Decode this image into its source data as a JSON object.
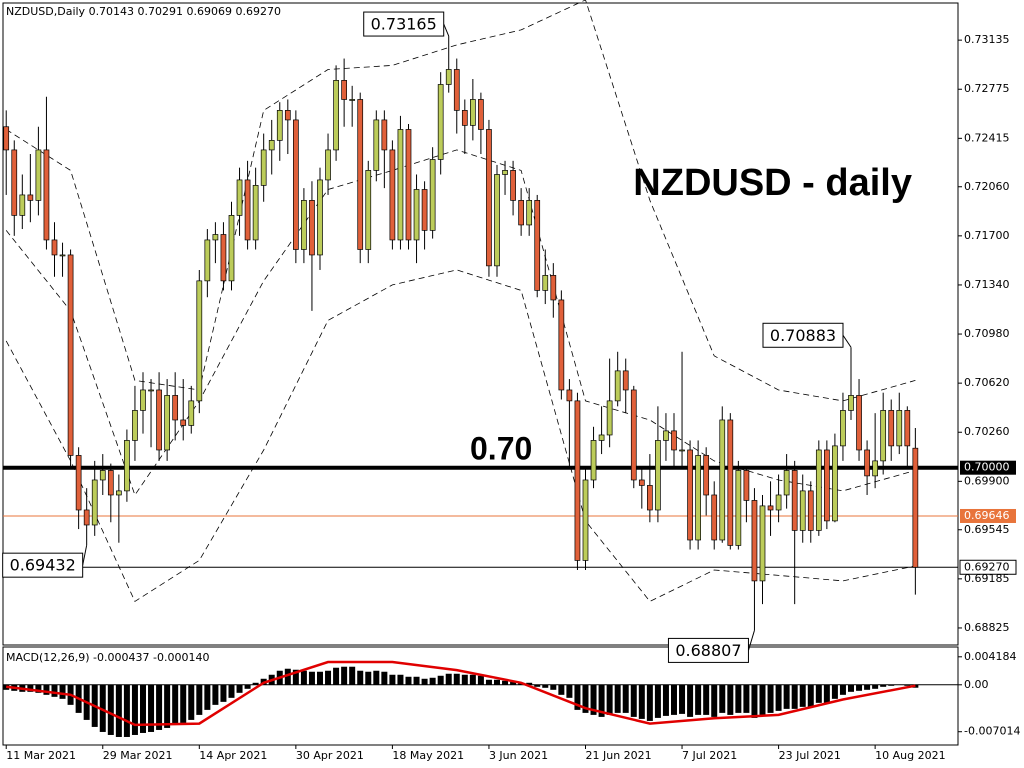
{
  "chart_data": {
    "type": "candlestick",
    "header": "NZDUSD,Daily  0.70143 0.70291 0.69069 0.69270",
    "title": "NZDUSD - daily",
    "level_label": "0.70",
    "bull_color": "#bccc5a",
    "bear_color": "#e0603a",
    "open": [
      0.725,
      0.7233,
      0.7185,
      0.72,
      0.7196,
      0.7233,
      0.7167,
      0.7156,
      0.7156,
      0.7009,
      0.6969,
      0.6958,
      0.6991,
      0.6998,
      0.698,
      0.6983,
      0.702,
      0.7042,
      0.7057,
      0.7057,
      0.7013,
      0.7053,
      0.7035,
      0.7031,
      0.7049,
      0.7137,
      0.7167,
      0.7171,
      0.7137,
      0.7185,
      0.7211,
      0.7167,
      0.7207,
      0.7233,
      0.724,
      0.7262,
      0.7255,
      0.716,
      0.7196,
      0.7156,
      0.7211,
      0.7233,
      0.7284,
      0.727,
      0.727,
      0.716,
      0.7218,
      0.7255,
      0.7233,
      0.7167,
      0.7248,
      0.7167,
      0.7204,
      0.7174,
      0.7226,
      0.7281,
      0.7292,
      0.7262,
      0.7251,
      0.727,
      0.7248,
      0.7148,
      0.7215,
      0.7218,
      0.7196,
      0.7178,
      0.7196,
      0.713,
      0.7141,
      0.7123,
      0.7057,
      0.7049,
      0.6932,
      0.6991,
      0.702,
      0.7024,
      0.7049,
      0.7071,
      0.7057,
      0.6991,
      0.6987,
      0.6969,
      0.702,
      0.7027,
      0.7013,
      0.7013,
      0.6947,
      0.7009,
      0.698,
      0.6947,
      0.7035,
      0.6943,
      0.6998,
      0.6976,
      0.6917,
      0.6972,
      0.6969,
      0.698,
      0.6998,
      0.6954,
      0.6983,
      0.6954,
      0.7013,
      0.6961,
      0.7016,
      0.7042,
      0.7053,
      0.7013,
      0.6994,
      0.7005,
      0.7042,
      0.7016,
      0.7042,
      0.70143
    ],
    "high": [
      0.7262,
      0.724,
      0.7215,
      0.723,
      0.725,
      0.7272,
      0.718,
      0.7165,
      0.716,
      0.7015,
      0.6985,
      0.7005,
      0.701,
      0.7003,
      0.6995,
      0.7028,
      0.706,
      0.707,
      0.7065,
      0.707,
      0.7065,
      0.707,
      0.7065,
      0.706,
      0.7145,
      0.7175,
      0.718,
      0.718,
      0.7195,
      0.722,
      0.7225,
      0.722,
      0.7245,
      0.7255,
      0.7268,
      0.727,
      0.7262,
      0.7205,
      0.721,
      0.722,
      0.7245,
      0.7295,
      0.73,
      0.728,
      0.7275,
      0.7225,
      0.7262,
      0.7262,
      0.724,
      0.7258,
      0.7252,
      0.7215,
      0.721,
      0.7235,
      0.729,
      0.73165,
      0.73,
      0.727,
      0.7285,
      0.7275,
      0.7255,
      0.7222,
      0.7225,
      0.7225,
      0.7205,
      0.7205,
      0.72,
      0.716,
      0.715,
      0.713,
      0.7065,
      0.7055,
      0.7,
      0.703,
      0.7045,
      0.708,
      0.7085,
      0.708,
      0.706,
      0.7,
      0.701,
      0.7045,
      0.704,
      0.704,
      0.7085,
      0.702,
      0.702,
      0.7015,
      0.699,
      0.7045,
      0.704,
      0.7005,
      0.7,
      0.6985,
      0.698,
      0.699,
      0.6995,
      0.701,
      0.7005,
      0.6995,
      0.699,
      0.702,
      0.702,
      0.7025,
      0.7055,
      0.70883,
      0.7065,
      0.702,
      0.704,
      0.7055,
      0.705,
      0.7055,
      0.7045,
      0.70291
    ],
    "low": [
      0.72,
      0.717,
      0.7175,
      0.718,
      0.7185,
      0.716,
      0.714,
      0.714,
      0.7,
      0.6955,
      0.69432,
      0.695,
      0.698,
      0.696,
      0.6945,
      0.6975,
      0.7005,
      0.7025,
      0.7015,
      0.7005,
      0.7005,
      0.702,
      0.702,
      0.7025,
      0.704,
      0.7125,
      0.715,
      0.713,
      0.713,
      0.717,
      0.716,
      0.716,
      0.7195,
      0.7215,
      0.7225,
      0.723,
      0.715,
      0.715,
      0.7115,
      0.7145,
      0.72,
      0.7225,
      0.725,
      0.725,
      0.715,
      0.715,
      0.721,
      0.7205,
      0.716,
      0.716,
      0.716,
      0.715,
      0.716,
      0.7168,
      0.7215,
      0.7275,
      0.7245,
      0.723,
      0.724,
      0.723,
      0.714,
      0.714,
      0.72,
      0.7185,
      0.717,
      0.717,
      0.7125,
      0.712,
      0.711,
      0.705,
      0.7,
      0.6925,
      0.6925,
      0.6985,
      0.701,
      0.7015,
      0.7045,
      0.704,
      0.6985,
      0.697,
      0.696,
      0.696,
      0.7005,
      0.7,
      0.7,
      0.694,
      0.694,
      0.6965,
      0.694,
      0.6945,
      0.694,
      0.694,
      0.696,
      0.68807,
      0.69,
      0.695,
      0.696,
      0.697,
      0.69,
      0.6945,
      0.6945,
      0.695,
      0.6955,
      0.696,
      0.7005,
      0.7035,
      0.7005,
      0.698,
      0.6985,
      0.6995,
      0.7005,
      0.701,
      0.7,
      0.69069
    ],
    "close": [
      0.7233,
      0.7185,
      0.72,
      0.7196,
      0.7233,
      0.7167,
      0.7156,
      0.7156,
      0.7009,
      0.6969,
      0.6958,
      0.6991,
      0.6998,
      0.698,
      0.6983,
      0.702,
      0.7042,
      0.7057,
      0.7057,
      0.7013,
      0.7053,
      0.7035,
      0.7031,
      0.7049,
      0.7137,
      0.7167,
      0.7171,
      0.7137,
      0.7185,
      0.7211,
      0.7167,
      0.7207,
      0.7233,
      0.724,
      0.7262,
      0.7255,
      0.716,
      0.7196,
      0.7156,
      0.7211,
      0.7233,
      0.7284,
      0.727,
      0.727,
      0.716,
      0.7218,
      0.7255,
      0.7233,
      0.7167,
      0.7248,
      0.7167,
      0.7204,
      0.7174,
      0.7226,
      0.7281,
      0.7292,
      0.7262,
      0.7251,
      0.727,
      0.7248,
      0.7148,
      0.7215,
      0.7218,
      0.7196,
      0.7178,
      0.7196,
      0.713,
      0.7141,
      0.7123,
      0.7057,
      0.7049,
      0.6932,
      0.6991,
      0.702,
      0.7024,
      0.7049,
      0.7071,
      0.7057,
      0.6991,
      0.6987,
      0.6969,
      0.702,
      0.7027,
      0.7013,
      0.7013,
      0.6947,
      0.7009,
      0.698,
      0.6947,
      0.7035,
      0.6943,
      0.6998,
      0.6976,
      0.6917,
      0.6972,
      0.6969,
      0.698,
      0.6998,
      0.6954,
      0.6983,
      0.6954,
      0.7013,
      0.6961,
      0.7016,
      0.7042,
      0.7053,
      0.7013,
      0.6994,
      0.7005,
      0.7042,
      0.7016,
      0.7042,
      0.7016,
      0.6927
    ],
    "xlim": [
      -0.4,
      118.3
    ],
    "xticks": [
      {
        "value": 0,
        "label": "11 Mar 2021"
      },
      {
        "value": 12,
        "label": "29 Mar 2021"
      },
      {
        "value": 24,
        "label": "14 Apr 2021"
      },
      {
        "value": 36,
        "label": "30 Apr 2021"
      },
      {
        "value": 48,
        "label": "18 May 2021"
      },
      {
        "value": 60,
        "label": "3 Jun 2021"
      },
      {
        "value": 72,
        "label": "21 Jun 2021"
      },
      {
        "value": 84,
        "label": "7 Jul 2021"
      },
      {
        "value": 96,
        "label": "23 Jul 2021"
      },
      {
        "value": 108,
        "label": "10 Aug 2021"
      }
    ],
    "ylim": [
      0.687,
      0.734
    ],
    "yticks": [
      0.73135,
      0.72775,
      0.72415,
      {
        "value": 0.7206,
        "label": "0.72060"
      },
      {
        "value": 0.717,
        "label": "0.71700"
      },
      {
        "value": 0.7134,
        "label": "0.71340"
      },
      {
        "value": 0.7098,
        "label": "0.70980"
      },
      {
        "value": 0.7062,
        "label": "0.70620"
      },
      {
        "value": 0.7026,
        "label": "0.70260"
      },
      {
        "value": 0.699,
        "label": "0.69900"
      },
      0.69545,
      0.69185,
      0.68825
    ],
    "bands": {
      "x": [
        0,
        8,
        16,
        24,
        32,
        40,
        48,
        56,
        64,
        72,
        80,
        88,
        96,
        104,
        113
      ],
      "upper": [
        0.7248,
        0.7218,
        0.7064,
        0.7057,
        0.7262,
        0.7292,
        0.7295,
        0.731,
        0.7321,
        0.7343,
        0.7196,
        0.7082,
        0.7057,
        0.7049,
        0.7064
      ],
      "middle": [
        0.7174,
        0.7115,
        0.698,
        0.7049,
        0.7137,
        0.7204,
        0.7218,
        0.7233,
        0.7218,
        0.7049,
        0.7035,
        0.7005,
        0.6991,
        0.6983,
        0.6998
      ],
      "lower": [
        0.7093,
        0.7005,
        0.6902,
        0.6932,
        0.7013,
        0.7108,
        0.7134,
        0.7145,
        0.713,
        0.6961,
        0.6902,
        0.6925,
        0.6921,
        0.6917,
        0.6928
      ]
    },
    "levels": [
      {
        "value": 0.7,
        "label": "0.70000",
        "color": "#000000"
      },
      {
        "value": 0.69646,
        "color": "#e8743b"
      },
      {
        "value": 0.6927,
        "label": "0.69270",
        "color": "#000000"
      }
    ],
    "callouts": [
      {
        "x": 55,
        "value": 0.73165
      },
      {
        "x": 105,
        "value": 0.70883
      },
      {
        "x": 93,
        "value": 0.68807
      },
      {
        "x": 10,
        "value": 0.69432
      }
    ],
    "macd": {
      "title": "MACD(12,26,9) -0.000437 -0.000140",
      "color": "#e00000",
      "ylim": [
        -0.009,
        0.0055
      ],
      "yticks": [
        0.004184,
        {
          "value": 0,
          "label": "0.00"
        },
        -0.007014
      ],
      "histogram": [
        -0.00075,
        -0.0009,
        -0.00105,
        -0.00105,
        -0.0012,
        -0.0015,
        -0.0018,
        -0.0021,
        -0.003,
        -0.0042,
        -0.00525,
        -0.0063,
        -0.00705,
        -0.0075,
        -0.0078,
        -0.0078,
        -0.0075,
        -0.0072,
        -0.00705,
        -0.00675,
        -0.00645,
        -0.006,
        -0.0057,
        -0.00525,
        -0.0045,
        -0.00375,
        -0.003,
        -0.00255,
        -0.00195,
        -0.0012,
        -0.0006,
        0.0003,
        0.0009,
        0.0015,
        0.0021,
        0.0024,
        0.00225,
        0.0021,
        0.00195,
        0.00195,
        0.0021,
        0.00255,
        0.0027,
        0.0027,
        0.0021,
        0.00195,
        0.0021,
        0.00195,
        0.0015,
        0.0015,
        0.0012,
        0.0012,
        0.0009,
        0.00105,
        0.00135,
        0.00165,
        0.00165,
        0.0015,
        0.0015,
        0.00135,
        0.00075,
        0.00075,
        0.0006,
        0.00045,
        0.0003,
        0.0003,
        -0.0003,
        -0.00045,
        -0.00075,
        -0.0015,
        -0.00195,
        -0.00375,
        -0.0042,
        -0.0045,
        -0.0048,
        -0.0045,
        -0.0042,
        -0.0042,
        -0.0048,
        -0.0051,
        -0.0054,
        -0.00495,
        -0.00465,
        -0.0045,
        -0.00435,
        -0.0048,
        -0.0045,
        -0.0045,
        -0.0048,
        -0.0042,
        -0.0045,
        -0.0042,
        -0.0042,
        -0.00495,
        -0.0045,
        -0.0042,
        -0.0039,
        -0.0036,
        -0.0036,
        -0.0033,
        -0.0033,
        -0.0027,
        -0.0027,
        -0.0021,
        -0.0015,
        -0.00105,
        -0.0009,
        -0.00075,
        -0.0006,
        -0.0003,
        -0.00015,
        0,
        -0.00015,
        -0.000437
      ],
      "signal_x": [
        0,
        8,
        16,
        24,
        32,
        40,
        48,
        56,
        64,
        72,
        80,
        88,
        96,
        104,
        113
      ],
      "signal": [
        -0.0003,
        -0.0015,
        -0.006,
        -0.0058,
        0.0003,
        0.0034,
        0.0034,
        0.0022,
        0.0003,
        -0.0035,
        -0.0058,
        -0.005,
        -0.0045,
        -0.0022,
        -0.00014
      ]
    }
  }
}
